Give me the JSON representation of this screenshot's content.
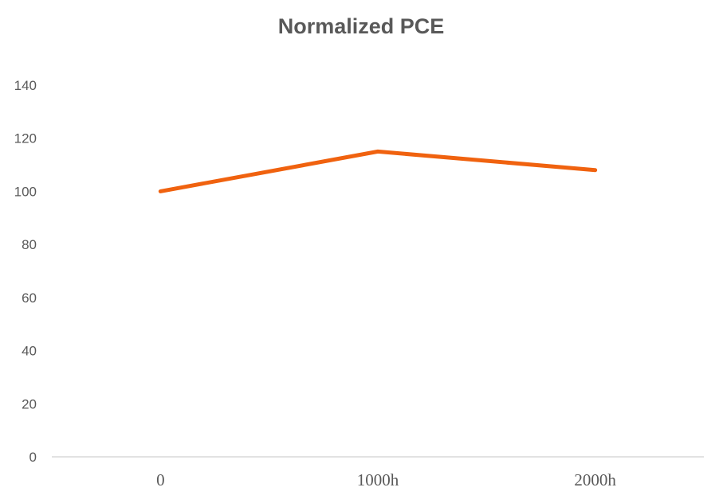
{
  "chart_data": {
    "type": "line",
    "title": "Normalized PCE",
    "xlabel": "",
    "ylabel": "",
    "categories": [
      "0",
      "1000h",
      "2000h"
    ],
    "series": [
      {
        "values": [
          100,
          115,
          108
        ],
        "color": "#f0620f"
      }
    ],
    "ylim": [
      0,
      140
    ],
    "yticks": [
      "0",
      "20",
      "40",
      "60",
      "80",
      "100",
      "120",
      "140"
    ],
    "grid": false,
    "legend": "none"
  }
}
